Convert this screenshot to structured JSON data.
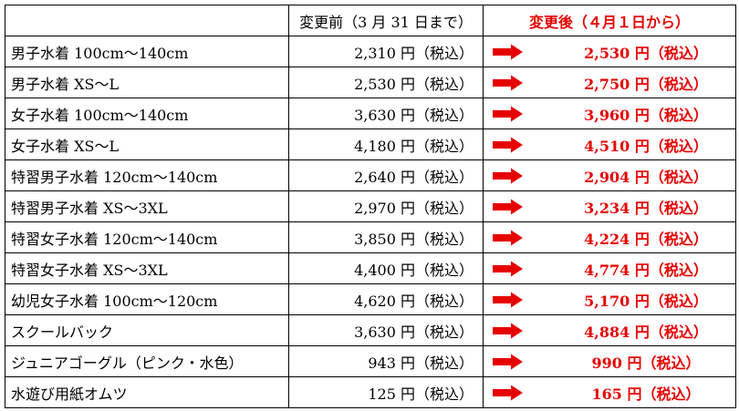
{
  "colors": {
    "accent_red": "#e60000",
    "border": "#000000",
    "text": "#000000"
  },
  "header": {
    "name_col": "",
    "old_price": "変更前（3 月 31 日まで）",
    "new_price": "変更後（４月１日から）"
  },
  "rows": [
    {
      "name": "男子水着 100cm〜140cm",
      "old": "2,310 円（税込）",
      "new": "2,530 円（税込）"
    },
    {
      "name": "男子水着 XS〜L",
      "old": "2,530 円（税込）",
      "new": "2,750 円（税込）"
    },
    {
      "name": "女子水着 100cm〜140cm",
      "old": "3,630 円（税込）",
      "new": "3,960 円（税込）"
    },
    {
      "name": "女子水着 XS〜L",
      "old": "4,180 円（税込）",
      "new": "4,510 円（税込）"
    },
    {
      "name": "特習男子水着 120cm〜140cm",
      "old": "2,640 円（税込）",
      "new": "2,904 円（税込）"
    },
    {
      "name": "特習男子水着 XS〜3XL",
      "old": "2,970 円（税込）",
      "new": "3,234 円（税込）"
    },
    {
      "name": "特習女子水着 120cm〜140cm",
      "old": "3,850 円（税込）",
      "new": "4,224 円（税込）"
    },
    {
      "name": "特習女子水着 XS〜3XL",
      "old": "4,400 円（税込）",
      "new": "4,774 円（税込）"
    },
    {
      "name": "幼児女子水着 100cm〜120cm",
      "old": "4,620 円（税込）",
      "new": "5,170 円（税込）"
    },
    {
      "name": "スクールバック",
      "old": "3,630 円（税込）",
      "new": "4,884 円（税込）"
    },
    {
      "name": "ジュニアゴーグル（ピンク・水色）",
      "old": "943 円（税込）",
      "new": "990 円（税込）"
    },
    {
      "name": "水遊び用紙オムツ",
      "old": "125 円（税込）",
      "new": "165 円（税込）"
    }
  ],
  "icons": {
    "row_arrow": "right-arrow-icon"
  }
}
